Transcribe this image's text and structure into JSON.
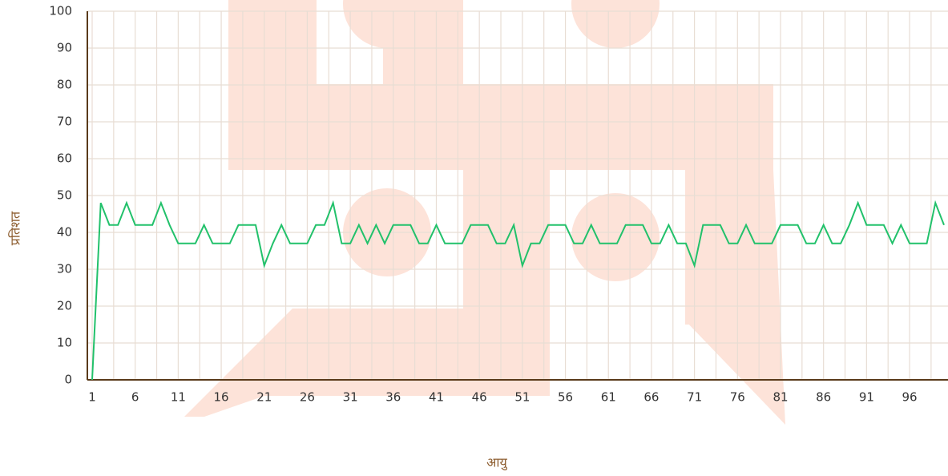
{
  "chart_data": {
    "type": "line",
    "x_label": "आयु",
    "y_label": "प्रतिशत",
    "categories": [
      "1",
      null,
      null,
      null,
      null,
      "6",
      null,
      null,
      null,
      null,
      "11",
      null,
      null,
      null,
      null,
      "16",
      null,
      null,
      null,
      null,
      "21",
      null,
      null,
      null,
      null,
      "26",
      null,
      null,
      null,
      null,
      "31",
      null,
      null,
      null,
      null,
      "36",
      null,
      null,
      null,
      null,
      "41",
      null,
      null,
      null,
      null,
      "46",
      null,
      null,
      null,
      null,
      "51",
      null,
      null,
      null,
      null,
      "56",
      null,
      null,
      null,
      null,
      "61",
      null,
      null,
      null,
      null,
      "66",
      null,
      null,
      null,
      null,
      "71",
      null,
      null,
      null,
      null,
      "76",
      null,
      null,
      null,
      null,
      "81",
      null,
      null,
      null,
      null,
      "86",
      null,
      null,
      null,
      null,
      "91",
      null,
      null,
      null,
      null,
      "96",
      null,
      null,
      null,
      null
    ],
    "series": [
      {
        "color": "#22c16b",
        "values": [
          0,
          48,
          42,
          42,
          48,
          42,
          42,
          42,
          48,
          42,
          37,
          37,
          37,
          42,
          37,
          37,
          37,
          42,
          42,
          42,
          31,
          37,
          42,
          37,
          37,
          37,
          42,
          42,
          48,
          37,
          37,
          42,
          37,
          42,
          37,
          42,
          42,
          42,
          37,
          37,
          42,
          37,
          37,
          37,
          42,
          42,
          42,
          37,
          37,
          42,
          31,
          37,
          37,
          42,
          42,
          42,
          37,
          37,
          42,
          37,
          37,
          37,
          42,
          42,
          42,
          37,
          37,
          42,
          37,
          37,
          31,
          42,
          42,
          42,
          37,
          37,
          42,
          37,
          37,
          37,
          42,
          42,
          42,
          37,
          37,
          42,
          37,
          37,
          42,
          48,
          42,
          42,
          42,
          37,
          42,
          37,
          37,
          37,
          48,
          42
        ]
      }
    ],
    "ylim": [
      0,
      100
    ],
    "yticks": [
      0,
      10,
      20,
      30,
      40,
      50,
      60,
      70,
      80,
      90,
      100
    ],
    "grid": true
  }
}
